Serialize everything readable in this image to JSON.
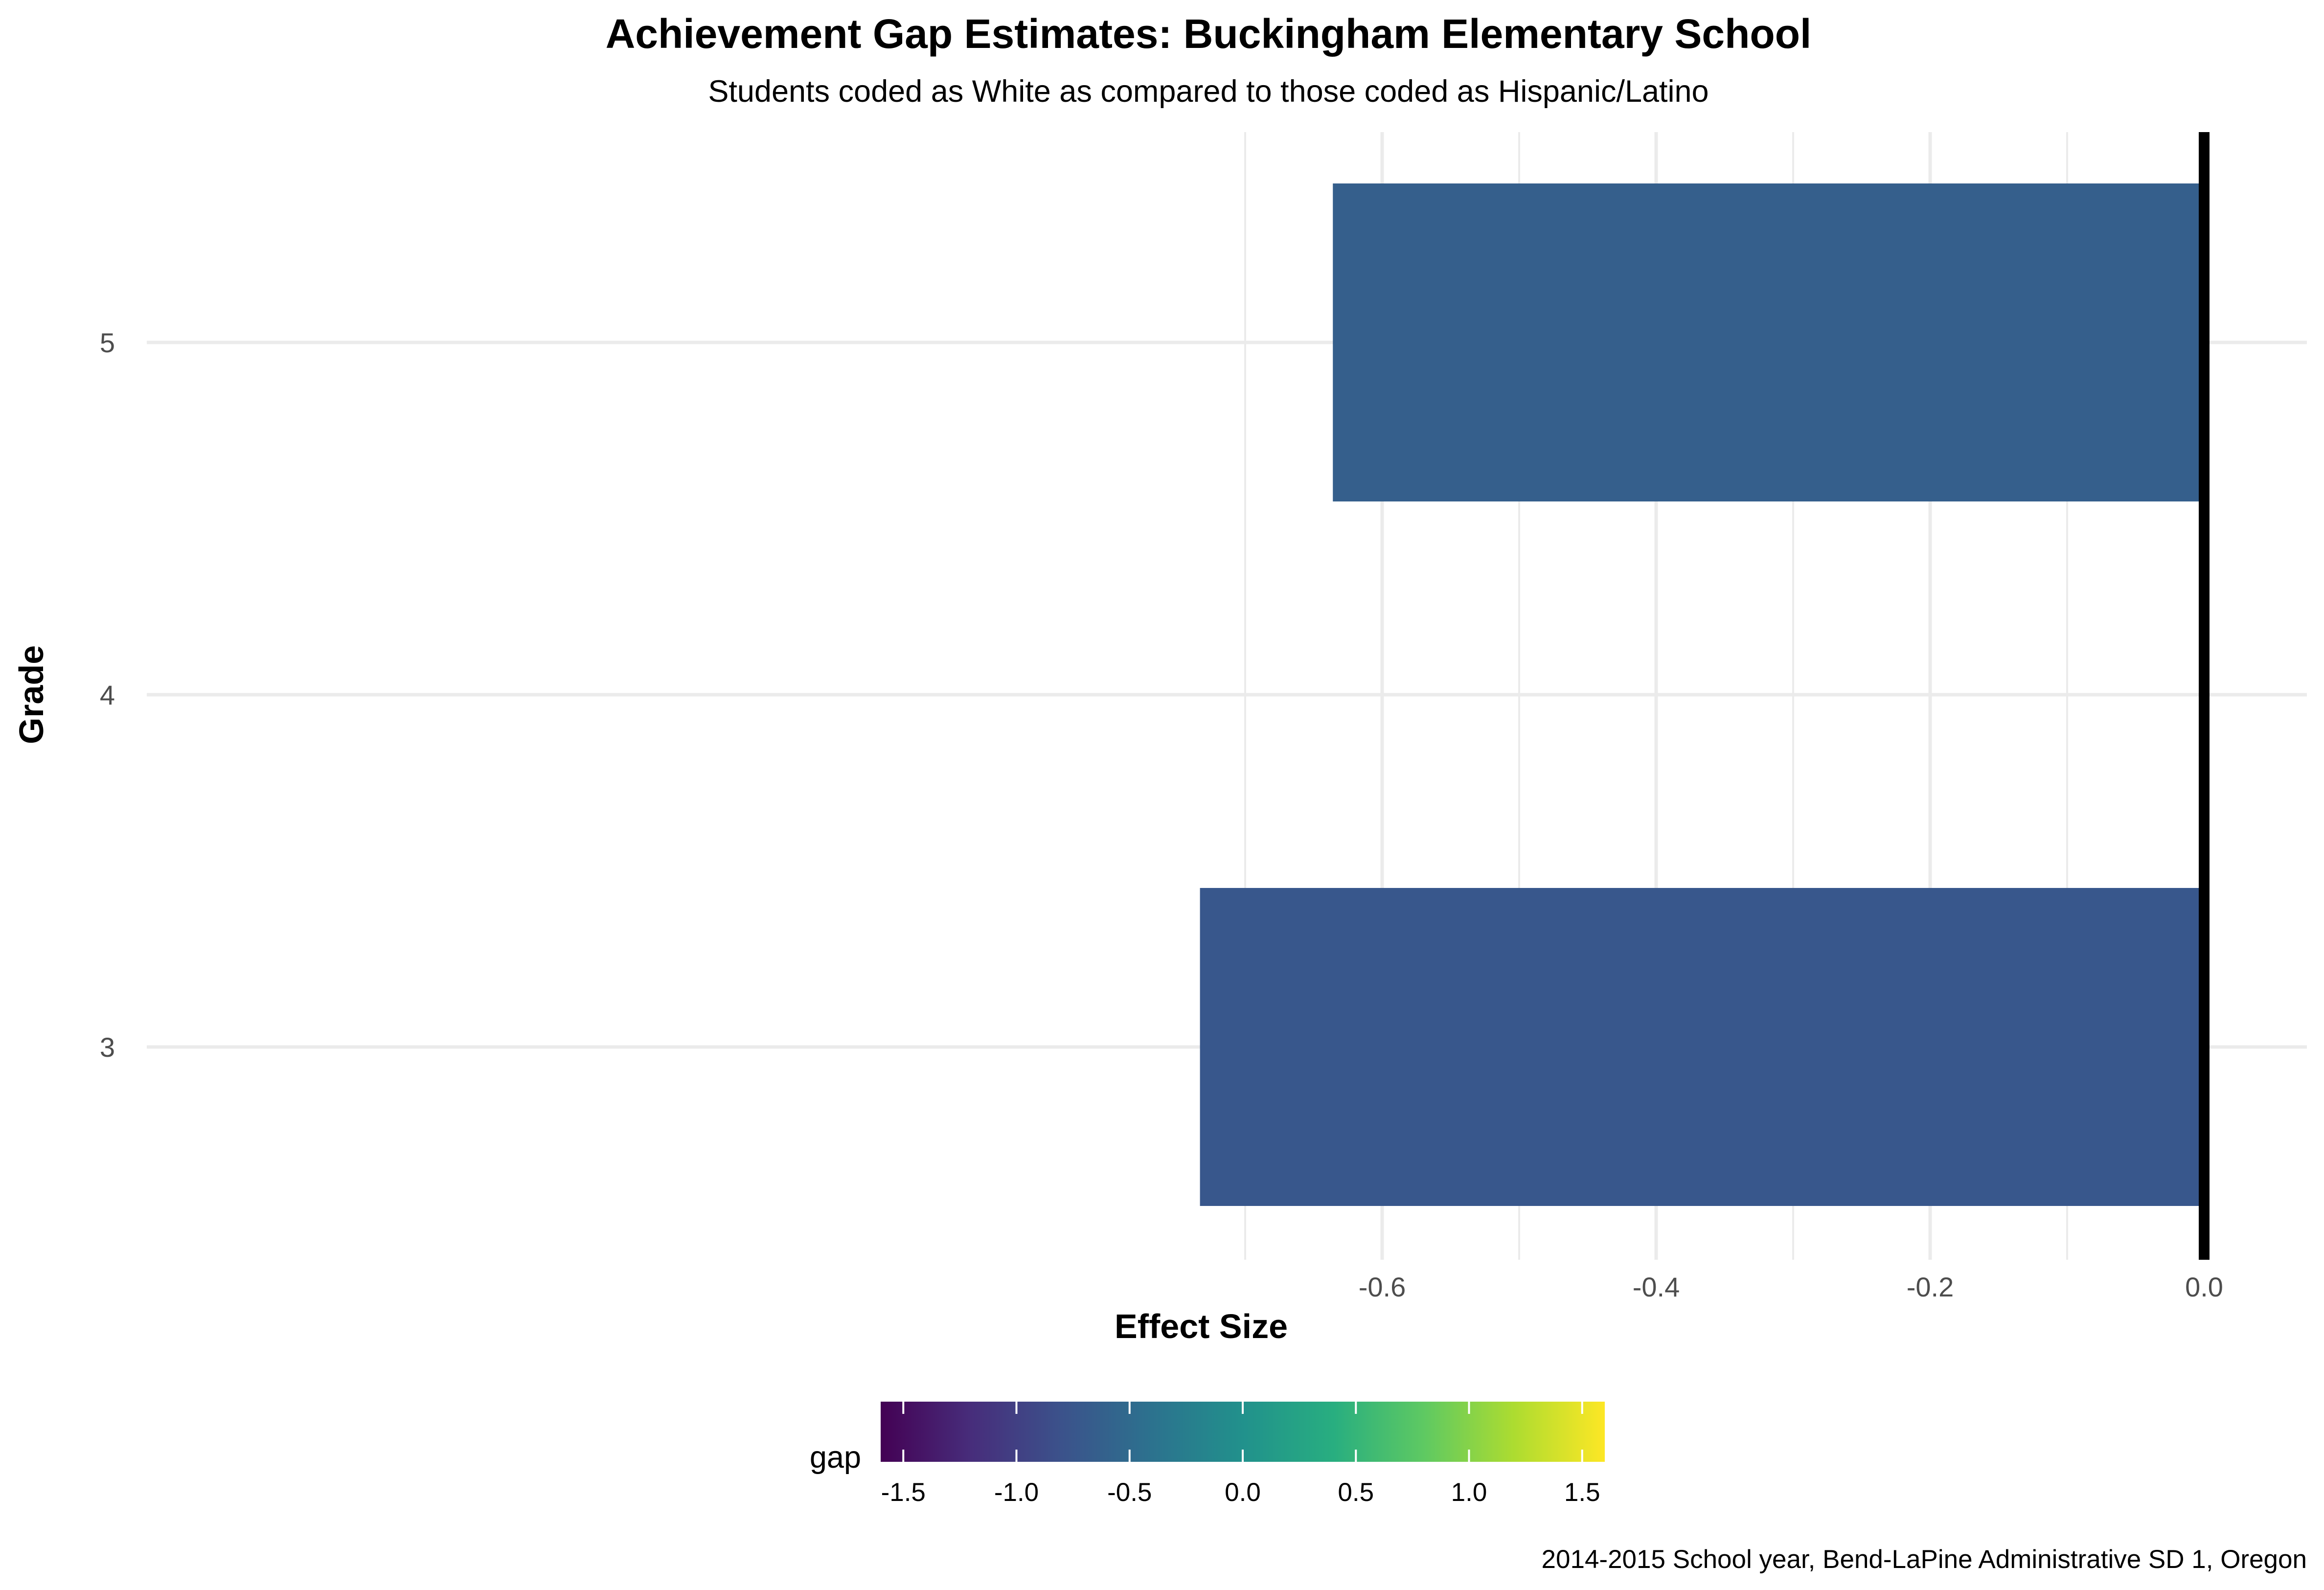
{
  "chart_data": {
    "type": "bar",
    "orientation": "horizontal",
    "title": "Achievement Gap Estimates: Buckingham Elementary School",
    "subtitle": "Students coded as White as compared to those coded as Hispanic/Latino",
    "xlabel": "Effect Size",
    "ylabel": "Grade",
    "categories": [
      "3",
      "4",
      "5"
    ],
    "values": [
      -0.733,
      -0.003,
      -0.636
    ],
    "xlim": [
      -0.8,
      0.0
    ],
    "x_ticks": [
      "-0.6",
      "-0.4",
      "-0.2",
      "0.0"
    ],
    "x_tick_values": [
      -0.6,
      -0.4,
      -0.2,
      0.0
    ],
    "reference_line": 0.0,
    "grid": true,
    "fill_scale": {
      "name": "gap",
      "palette": "viridis",
      "limits": [
        -1.6,
        1.6
      ],
      "tick_labels": [
        "-1.5",
        "-1.0",
        "-0.5",
        "0.0",
        "0.5",
        "1.0",
        "1.5"
      ],
      "tick_values": [
        -1.5,
        -1.0,
        -0.5,
        0.0,
        0.5,
        1.0,
        1.5
      ],
      "position": "bottom"
    },
    "caption": "2014-2015 School year, Bend-LaPine Administrative SD 1, Oregon"
  }
}
